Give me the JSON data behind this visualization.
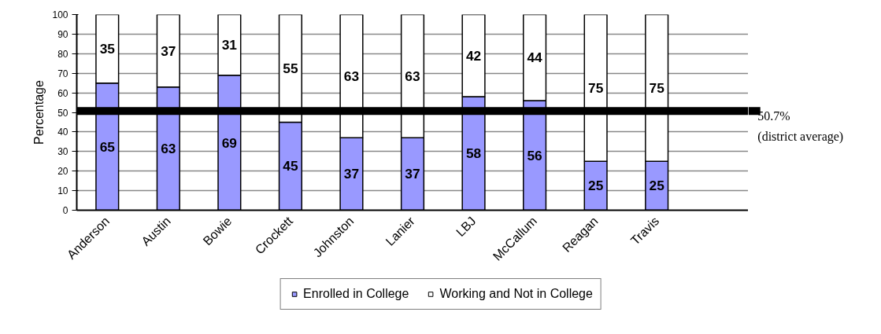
{
  "chart_data": {
    "type": "bar",
    "stacked": true,
    "ylabel": "Percentage",
    "categories": [
      "Anderson",
      "Austin",
      "Bowie",
      "Crockett",
      "Johnston",
      "Lanier",
      "LBJ",
      "McCallum",
      "Reagan",
      "Travis",
      null
    ],
    "series": [
      {
        "name": "Enrolled in College",
        "color": "#9999ff",
        "values": [
          65,
          63,
          69,
          45,
          37,
          37,
          58,
          56,
          25,
          25,
          null
        ]
      },
      {
        "name": "Working and Not in College",
        "color": "#ffffff",
        "values": [
          35,
          37,
          31,
          55,
          63,
          63,
          42,
          44,
          75,
          75,
          null
        ]
      }
    ],
    "ylim": [
      0,
      100
    ],
    "yticks": [
      0,
      10,
      20,
      30,
      40,
      50,
      60,
      70,
      80,
      90,
      100
    ],
    "grid": "y",
    "legend": "bottom",
    "data_labels": true,
    "ref_lines": [
      {
        "axis": "y",
        "value": 50.7,
        "label": "50.7%\n(district average)",
        "color": "#000000"
      }
    ]
  }
}
